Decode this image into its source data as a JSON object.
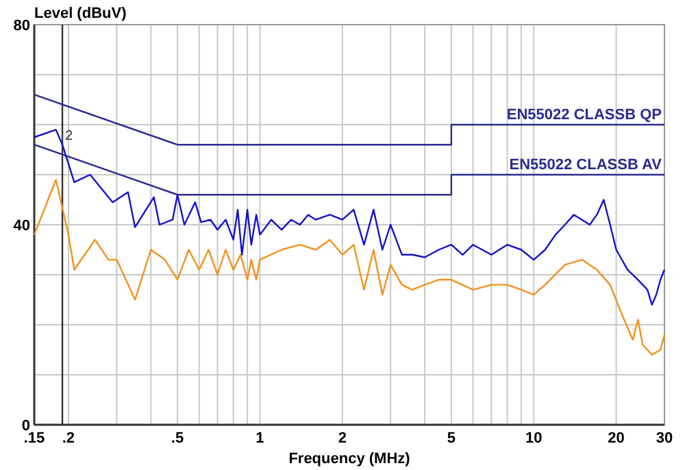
{
  "chart_data": {
    "type": "line",
    "xlabel": "Frequency (MHz)",
    "ylabel": "Level (dBuV)",
    "log": "x",
    "grid": true,
    "marker": "none",
    "line_style": "solid",
    "xlim": [
      0.15,
      30
    ],
    "ylim": [
      0,
      80
    ],
    "xticks": [
      {
        "value": 0.15,
        "label": ".15"
      },
      {
        "value": 0.2,
        "label": ".2"
      },
      {
        "value": 0.3,
        "label": null
      },
      {
        "value": 0.4,
        "label": null
      },
      {
        "value": 0.5,
        "label": ".5"
      },
      {
        "value": 0.6,
        "label": null
      },
      {
        "value": 0.7,
        "label": null
      },
      {
        "value": 0.8,
        "label": null
      },
      {
        "value": 0.9,
        "label": null
      },
      1,
      2,
      {
        "value": 3,
        "label": null
      },
      {
        "value": 4,
        "label": null
      },
      5,
      {
        "value": 6,
        "label": null
      },
      {
        "value": 7,
        "label": null
      },
      {
        "value": 8,
        "label": null
      },
      {
        "value": 9,
        "label": null
      },
      10,
      20,
      30
    ],
    "yticks": [
      0,
      {
        "value": 10,
        "label": null
      },
      {
        "value": 20,
        "label": null
      },
      {
        "value": 30,
        "label": null
      },
      40,
      {
        "value": 50,
        "label": null
      },
      {
        "value": 60,
        "label": null
      },
      {
        "value": 70,
        "label": null
      },
      80
    ],
    "series": [
      {
        "name": "EN55022 CLASSB QP",
        "color": "#2b2b8f",
        "x": [
          0.15,
          0.5,
          5,
          5,
          30
        ],
        "values": [
          66,
          56,
          56,
          60,
          60
        ]
      },
      {
        "name": "EN55022 CLASSB AV",
        "color": "#2b2b8f",
        "x": [
          0.15,
          0.5,
          5,
          5,
          30
        ],
        "values": [
          56,
          46,
          46,
          50,
          50
        ]
      },
      {
        "color": "#f0921e",
        "x": [
          0.15,
          0.18,
          0.2,
          0.21,
          0.25,
          0.28,
          0.3,
          0.35,
          0.4,
          0.45,
          0.5,
          0.55,
          0.6,
          0.65,
          0.7,
          0.75,
          0.8,
          0.85,
          0.9,
          0.93,
          0.97,
          1.0,
          1.2,
          1.4,
          1.6,
          1.8,
          2,
          2.2,
          2.4,
          2.6,
          2.8,
          3,
          3.3,
          3.6,
          4,
          4.5,
          5,
          6,
          7,
          8,
          9,
          10,
          11,
          13,
          15,
          17,
          19,
          21,
          23,
          24,
          25,
          27,
          29,
          30
        ],
        "values": [
          38,
          49,
          38,
          31,
          37,
          33,
          33,
          25,
          35,
          33,
          29,
          35,
          31,
          35,
          30,
          35,
          31,
          34,
          29,
          33,
          29,
          33,
          35,
          36,
          35,
          37,
          34,
          36,
          27,
          35,
          26,
          32,
          28,
          27,
          28,
          29,
          29,
          27,
          28,
          28,
          27,
          26,
          28,
          32,
          33,
          31,
          28,
          22,
          17,
          21,
          16,
          14,
          15,
          18
        ]
      },
      {
        "color": "#1414c8",
        "x": [
          0.15,
          0.18,
          0.19,
          0.21,
          0.24,
          0.29,
          0.33,
          0.35,
          0.41,
          0.43,
          0.48,
          0.5,
          0.53,
          0.58,
          0.61,
          0.66,
          0.7,
          0.75,
          0.8,
          0.83,
          0.86,
          0.9,
          0.93,
          0.97,
          1.0,
          1.1,
          1.2,
          1.3,
          1.4,
          1.5,
          1.6,
          1.8,
          2.0,
          2.2,
          2.4,
          2.6,
          2.8,
          3.0,
          3.3,
          3.6,
          4,
          4.5,
          5,
          5.5,
          6,
          7,
          8,
          9,
          10,
          11,
          12,
          13,
          14,
          15,
          16,
          17,
          18,
          19,
          20,
          22,
          24,
          26,
          27,
          28,
          29,
          30
        ],
        "values": [
          57.5,
          59,
          56,
          48.5,
          50,
          44.5,
          46.5,
          39.5,
          45.5,
          40,
          41,
          46,
          40,
          44.5,
          40.5,
          41,
          39,
          41,
          37,
          43,
          34,
          43,
          36,
          42,
          38,
          41,
          39,
          41,
          40,
          42,
          41,
          42,
          41,
          43,
          36,
          43,
          35,
          40,
          34,
          34,
          33.5,
          35,
          36,
          34,
          36,
          34,
          36,
          35,
          33,
          35,
          38,
          40,
          42,
          41,
          40,
          42,
          45,
          40,
          35,
          31,
          29,
          27,
          24,
          26,
          29,
          31
        ]
      }
    ],
    "ref_lines": [
      {
        "axis": "x",
        "value": 0.19,
        "color": "#333333"
      }
    ],
    "annotations": [
      {
        "text": "2",
        "x": 0.19,
        "y": 57
      }
    ]
  }
}
